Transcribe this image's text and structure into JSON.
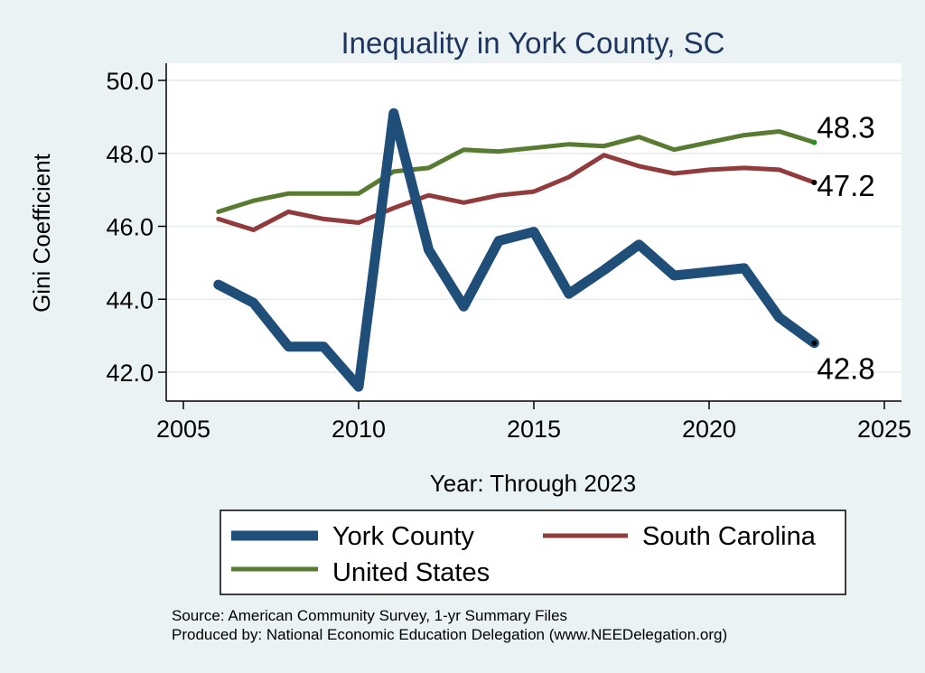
{
  "chart_data": {
    "type": "line",
    "title": "Inequality in York County, SC",
    "xlabel": "Year: Through 2023",
    "ylabel": "Gini Coefficient",
    "xlim": [
      2005,
      2025
    ],
    "ylim": [
      41.2,
      50.5
    ],
    "xticks": [
      "2005",
      "2010",
      "2015",
      "2020",
      "2025"
    ],
    "yticks": [
      "42.0",
      "44.0",
      "46.0",
      "48.0",
      "50.0"
    ],
    "x": [
      2006,
      2007,
      2008,
      2009,
      2010,
      2011,
      2012,
      2013,
      2014,
      2015,
      2016,
      2017,
      2018,
      2019,
      2020,
      2021,
      2022,
      2023
    ],
    "series": [
      {
        "name": "York County",
        "color": "#1f4e79",
        "values": [
          44.4,
          43.9,
          42.7,
          42.7,
          41.6,
          49.1,
          45.35,
          43.8,
          45.6,
          45.85,
          44.15,
          44.8,
          45.5,
          44.65,
          44.75,
          44.85,
          43.5,
          42.8
        ],
        "end_label": "42.8"
      },
      {
        "name": "South Carolina",
        "color": "#913b3c",
        "values": [
          46.2,
          45.9,
          46.4,
          46.2,
          46.1,
          46.5,
          46.85,
          46.65,
          46.85,
          46.95,
          47.35,
          47.95,
          47.65,
          47.45,
          47.55,
          47.6,
          47.55,
          47.2
        ],
        "end_label": "47.2"
      },
      {
        "name": "United States",
        "color": "#587a31",
        "values": [
          46.4,
          46.7,
          46.9,
          46.9,
          46.9,
          47.5,
          47.6,
          48.1,
          48.05,
          48.15,
          48.25,
          48.2,
          48.45,
          48.1,
          48.3,
          48.5,
          48.6,
          48.3
        ],
        "end_label": "48.3"
      }
    ],
    "legend_position": "bottom",
    "source_note": "Source: American Community Survey, 1-yr Summary Files",
    "produced_note": "Produced by: National Economic Education Delegation (www.NEEDelegation.org)"
  }
}
